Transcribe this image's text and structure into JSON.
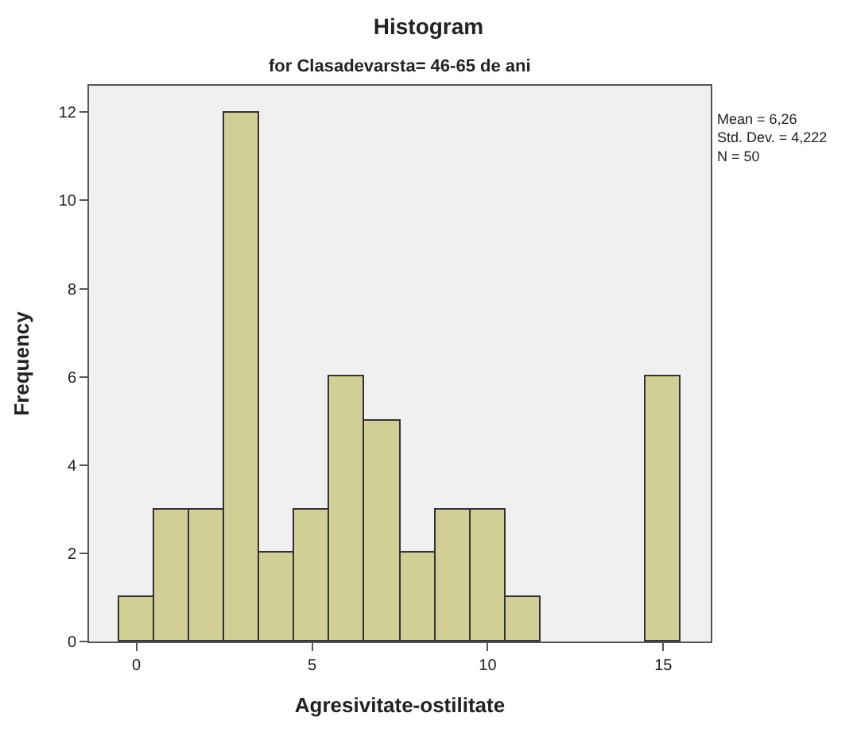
{
  "chart_data": {
    "type": "histogram",
    "title": "Histogram",
    "subtitle": "for Clasadevarsta= 46-65 de ani",
    "xlabel": "Agresivitate-ostilitate",
    "ylabel": "Frequency",
    "bins": [
      -0.5,
      0.5,
      1.5,
      2.5,
      3.5,
      4.5,
      5.5,
      6.5,
      7.5,
      8.5,
      9.5,
      10.5,
      11.5,
      12.5,
      13.5,
      14.5,
      15.5
    ],
    "values": [
      1,
      3,
      3,
      12,
      2,
      3,
      6,
      5,
      2,
      3,
      3,
      1,
      0,
      0,
      0,
      6
    ],
    "color": "#d2cf96",
    "xlim": [
      -1.35,
      16.35
    ],
    "xticks": [
      0,
      5,
      10,
      15
    ],
    "ylim": [
      0,
      12.6
    ],
    "yticks": [
      0,
      2,
      4,
      6,
      8,
      10,
      12
    ],
    "annotations": [
      "Mean = 6,26\nStd. Dev. = 4,222\nN = 50"
    ]
  }
}
